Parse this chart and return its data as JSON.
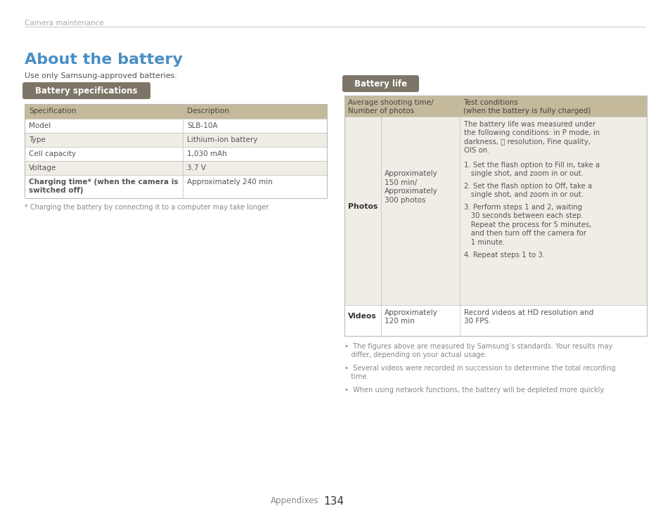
{
  "bg_color": "#ffffff",
  "header_text": "Camera maintenance",
  "header_color": "#aaaaaa",
  "title": "About the battery",
  "title_color": "#4a8fc4",
  "subtitle": "Use only Samsung-approved batteries.",
  "subtitle_color": "#555555",
  "section1_label": "Battery specifications",
  "section1_label_bg": "#7d7668",
  "section1_label_color": "#ffffff",
  "table1_header_bg": "#c4b99a",
  "table1_header_color": "#444444",
  "table1_row_bg_odd": "#f0ede6",
  "table1_row_bg_even": "#ffffff",
  "table1_rows": [
    [
      "Specification",
      "Description",
      false
    ],
    [
      "Model",
      "SLB-10A",
      false
    ],
    [
      "Type",
      "Lithium-ion battery",
      false
    ],
    [
      "Cell capacity",
      "1,030 mAh",
      false
    ],
    [
      "Voltage",
      "3.7 V",
      false
    ],
    [
      "Charging time* (when the camera is\nswitched off)",
      "Approximately 240 min",
      true
    ]
  ],
  "footnote1": "* Charging the battery by connecting it to a computer may take longer.",
  "footnote1_color": "#888888",
  "section2_label": "Battery life",
  "section2_label_bg": "#7d7668",
  "section2_label_color": "#ffffff",
  "table2_header_bg": "#c4b99a",
  "table2_header_color": "#444444",
  "table2_col1_header": "Average shooting time/\nNumber of photos",
  "table2_col2_header": "Test conditions\n(when the battery is fully charged)",
  "photos_time": "Approximately\n150 min/\nApproximately\n300 photos",
  "photos_conditions_1": "The battery life was measured under\nthe following conditions: in P mode, in\ndarkness, ⧨ resolution, Fine quality,\nOIS on.",
  "photos_conditions_2": "1. Set the flash option to Fill in, take a\n   single shot, and zoom in or out.",
  "photos_conditions_3": "2. Set the flash option to Off, take a\n   single shot, and zoom in or out.",
  "photos_conditions_4": "3. Perform steps 1 and 2, waiting\n   30 seconds between each step.\n   Repeat the process for 5 minutes,\n   and then turn off the camera for\n   1 minute.",
  "photos_conditions_5": "4. Repeat steps 1 to 3.",
  "videos_time": "Approximately\n120 min",
  "videos_conditions": "Record videos at HD resolution and\n30 FPS.",
  "footnotes2": [
    "•  The figures above are measured by Samsung’s standards. Your results may\n   differ, depending on your actual usage.",
    "•  Several videos were recorded in succession to determine the total recording\n   time.",
    "•  When using network functions, the battery will be depleted more quickly."
  ],
  "footnotes2_color": "#888888",
  "page_footer_left": "Appendixes",
  "page_footer_num": "134",
  "page_footer_color": "#888888",
  "line_color": "#cccccc",
  "table_border_color": "#bbbbbb",
  "text_color": "#555555",
  "bold_color": "#333333"
}
